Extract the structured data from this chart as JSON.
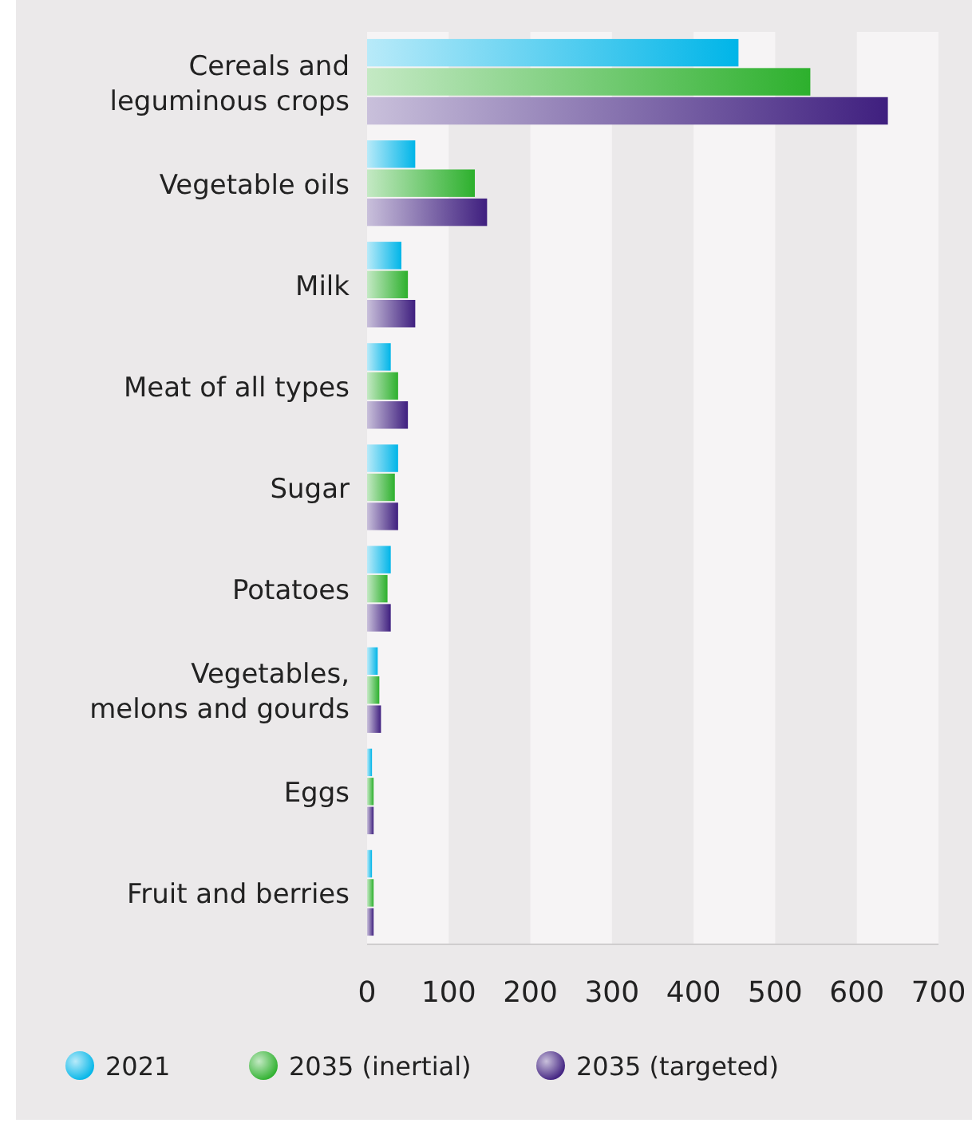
{
  "chart_data": {
    "type": "bar",
    "orientation": "horizontal",
    "categories": [
      "Cereals and\nleguminous crops",
      "Vegetable oils",
      "Milk",
      "Meat of all types",
      "Sugar",
      "Potatoes",
      "Vegetables,\nmelons and gourds",
      "Eggs",
      "Fruit and berries"
    ],
    "series": [
      {
        "name": "2021",
        "color": "#00b5e8",
        "values": [
          455,
          59,
          42,
          29,
          38,
          29,
          13,
          6,
          6
        ]
      },
      {
        "name": "2035 (inertial)",
        "color": "#2db02d",
        "values": [
          543,
          132,
          50,
          38,
          34,
          25,
          15,
          8,
          8
        ]
      },
      {
        "name": "2035 (targeted)",
        "color": "#3f1f7f",
        "values": [
          638,
          147,
          59,
          50,
          38,
          29,
          17,
          8,
          8
        ]
      }
    ],
    "xlim": [
      0,
      700
    ],
    "xticks": [
      0,
      100,
      200,
      300,
      400,
      500,
      600,
      700
    ],
    "legend": "bottom"
  }
}
